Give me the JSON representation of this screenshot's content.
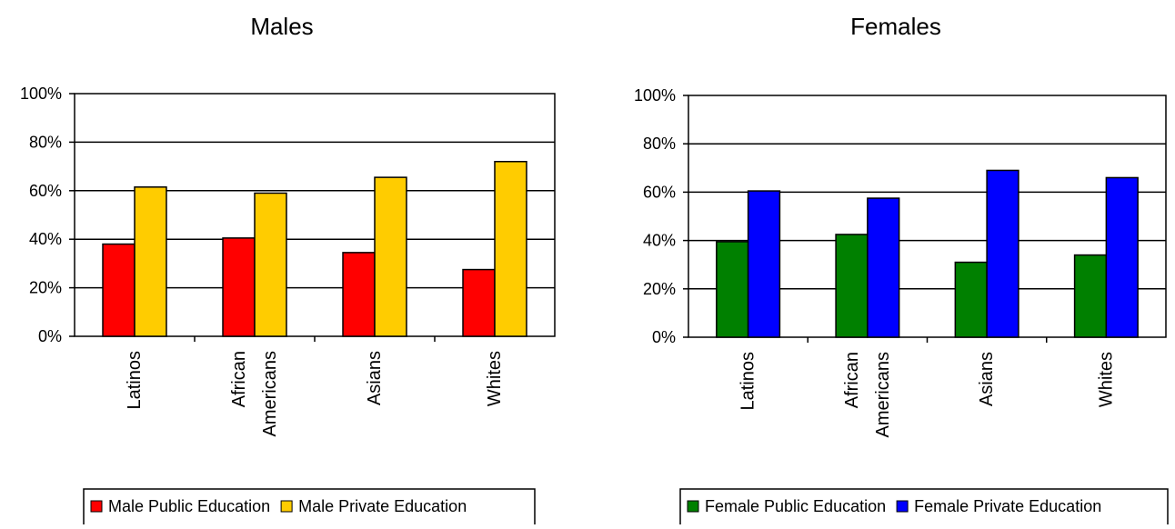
{
  "chart_data": [
    {
      "type": "bar",
      "title": "Males",
      "categories": [
        [
          "Latinos"
        ],
        [
          "African",
          "Americans"
        ],
        [
          "Asians"
        ],
        [
          "Whites"
        ]
      ],
      "ylim": [
        0,
        100
      ],
      "yticks": [
        "0%",
        "20%",
        "40%",
        "60%",
        "80%",
        "100%"
      ],
      "grid": true,
      "legend_position": "bottom",
      "series": [
        {
          "name": "Male Public Education",
          "color": "#ff0000",
          "values": [
            38,
            40.5,
            34.5,
            27.5
          ]
        },
        {
          "name": "Male Private Education",
          "color": "#ffcc00",
          "values": [
            61.5,
            59,
            65.5,
            72
          ]
        }
      ]
    },
    {
      "type": "bar",
      "title": "Females",
      "categories": [
        [
          "Latinos"
        ],
        [
          "African",
          "Americans"
        ],
        [
          "Asians"
        ],
        [
          "Whites"
        ]
      ],
      "ylim": [
        0,
        100
      ],
      "yticks": [
        "0%",
        "20%",
        "40%",
        "60%",
        "80%",
        "100%"
      ],
      "grid": true,
      "legend_position": "bottom",
      "series": [
        {
          "name": "Female Public Education",
          "color": "#008000",
          "values": [
            39.5,
            42.5,
            31,
            34
          ]
        },
        {
          "name": "Female Private Education",
          "color": "#0000ff",
          "values": [
            60.5,
            57.5,
            69,
            66
          ]
        }
      ]
    }
  ]
}
